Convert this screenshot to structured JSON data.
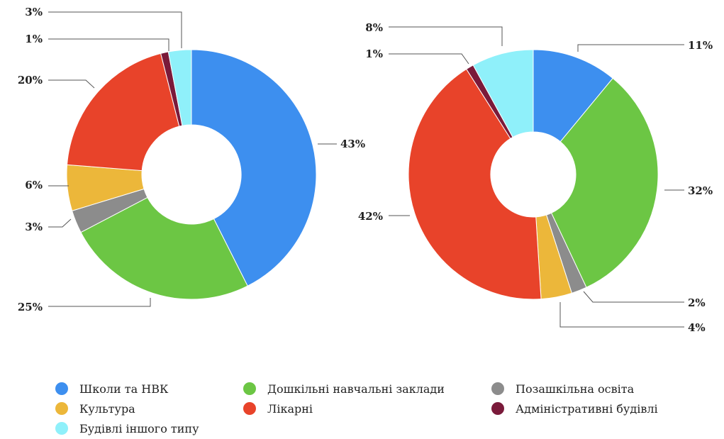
{
  "chart_data": [
    {
      "type": "donut",
      "slices": [
        {
          "category": "Школи та НВК",
          "value": 43,
          "label": "43%"
        },
        {
          "category": "Дошкільні навчальні заклади",
          "value": 25,
          "label": "25%"
        },
        {
          "category": "Позашкільна освіта",
          "value": 3,
          "label": "3%"
        },
        {
          "category": "Культура",
          "value": 6,
          "label": "6%"
        },
        {
          "category": "Лікарні",
          "value": 20,
          "label": "20%"
        },
        {
          "category": "Адміністративні будівлі",
          "value": 1,
          "label": "1%"
        },
        {
          "category": "Будівлі іншого типу",
          "value": 3,
          "label": "3%"
        }
      ]
    },
    {
      "type": "donut",
      "slices": [
        {
          "category": "Школи та НВК",
          "value": 11,
          "label": "11%"
        },
        {
          "category": "Дошкільні навчальні заклади",
          "value": 32,
          "label": "32%"
        },
        {
          "category": "Позашкільна освіта",
          "value": 2,
          "label": "2%"
        },
        {
          "category": "Культура",
          "value": 4,
          "label": "4%"
        },
        {
          "category": "Лікарні",
          "value": 42,
          "label": "42%"
        },
        {
          "category": "Адміністративні будівлі",
          "value": 1,
          "label": "1%"
        },
        {
          "category": "Будівлі іншого типу",
          "value": 8,
          "label": "8%"
        }
      ]
    }
  ],
  "legend": [
    {
      "label": "Школи та НВК",
      "color": "#3d8fef"
    },
    {
      "label": "Дошкільні навчальні заклади",
      "color": "#6cc644"
    },
    {
      "label": "Позашкільна освіта",
      "color": "#8c8c8c"
    },
    {
      "label": "Культура",
      "color": "#ecb73a"
    },
    {
      "label": "Лікарні",
      "color": "#e8432a"
    },
    {
      "label": "Адміністративні будівлі",
      "color": "#7a1a3a"
    },
    {
      "label": "Будівлі іншого типу",
      "color": "#8ff0fa"
    }
  ]
}
